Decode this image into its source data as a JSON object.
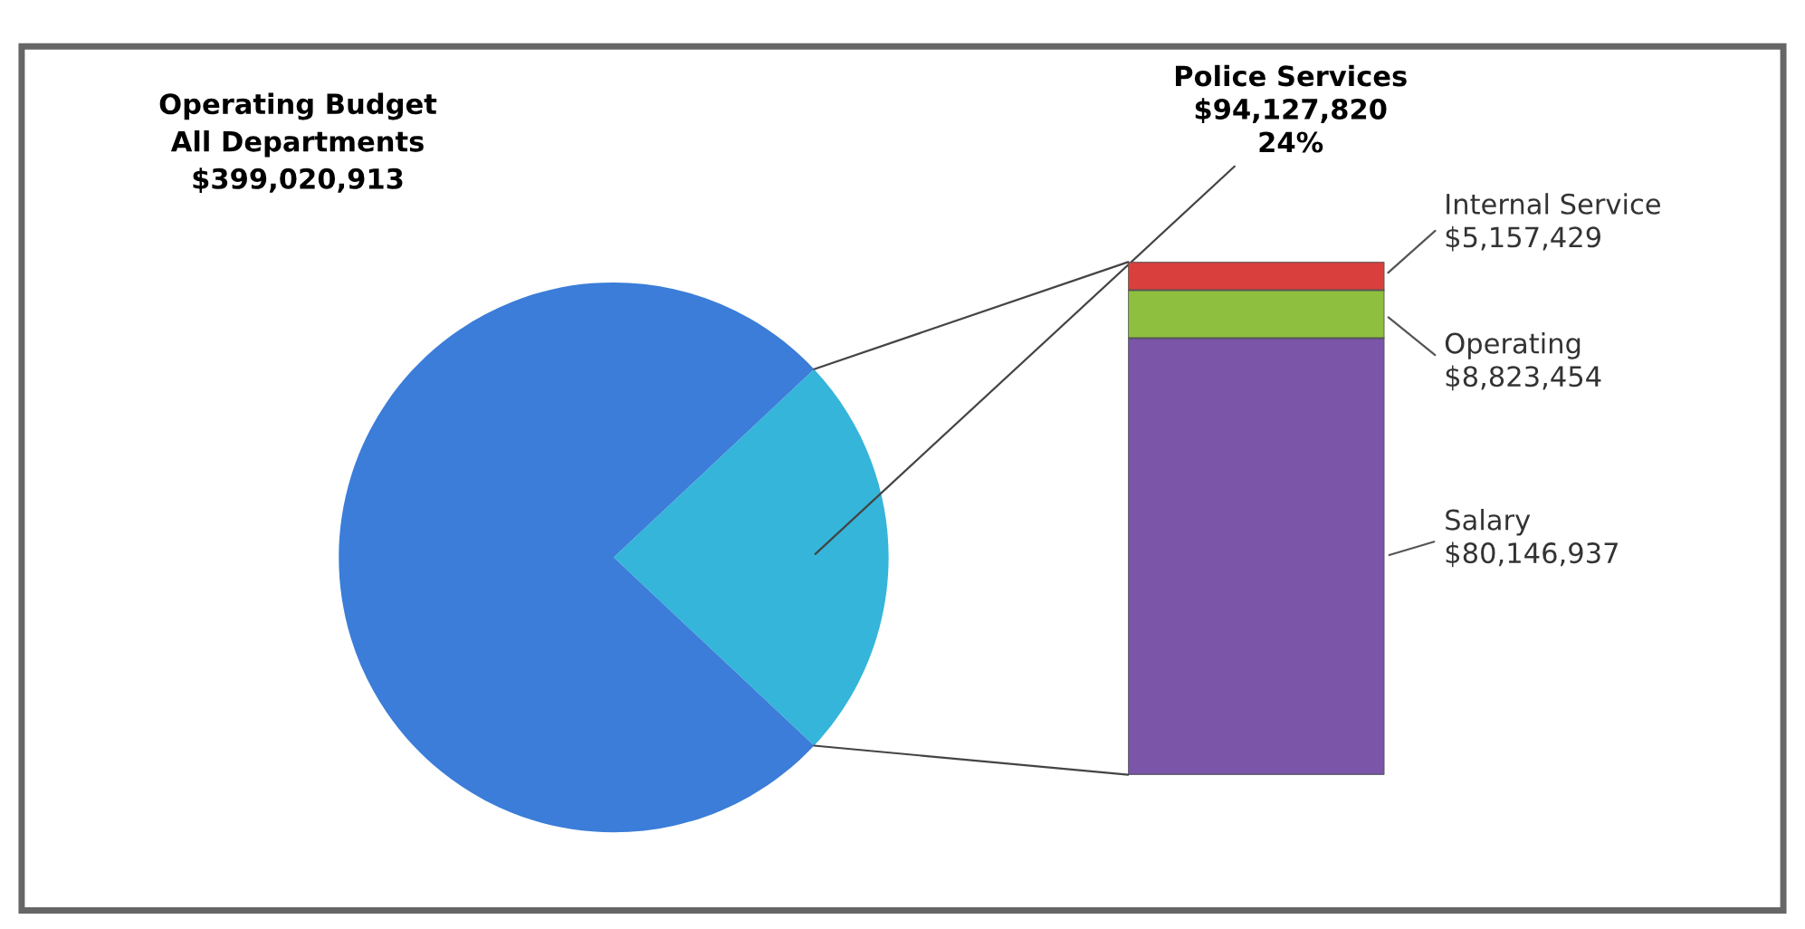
{
  "chart_data": [
    {
      "type": "pie",
      "title": "Operating Budget\nAll Departments\n$399,020,913",
      "categories": [
        null,
        "Police Services"
      ],
      "values": [
        76,
        24
      ],
      "colors": [
        "#3b7dd8",
        "#35b5da"
      ],
      "value_labels": [
        null,
        "$94,127,820\n24%"
      ]
    },
    {
      "type": "bar",
      "stacked": true,
      "categories": [
        null
      ],
      "series": [
        {
          "name": "Salary",
          "color": "#7a55a8",
          "values": [
            80146937
          ],
          "value_labels": [
            "$80,146,937"
          ]
        },
        {
          "name": "Operating",
          "color": "#8fbf3f",
          "values": [
            8823454
          ],
          "value_labels": [
            "$8,823,454"
          ]
        },
        {
          "name": "Internal Service",
          "color": "#d9403d",
          "values": [
            5157429
          ],
          "value_labels": [
            "$5,157,429"
          ]
        }
      ]
    }
  ]
}
